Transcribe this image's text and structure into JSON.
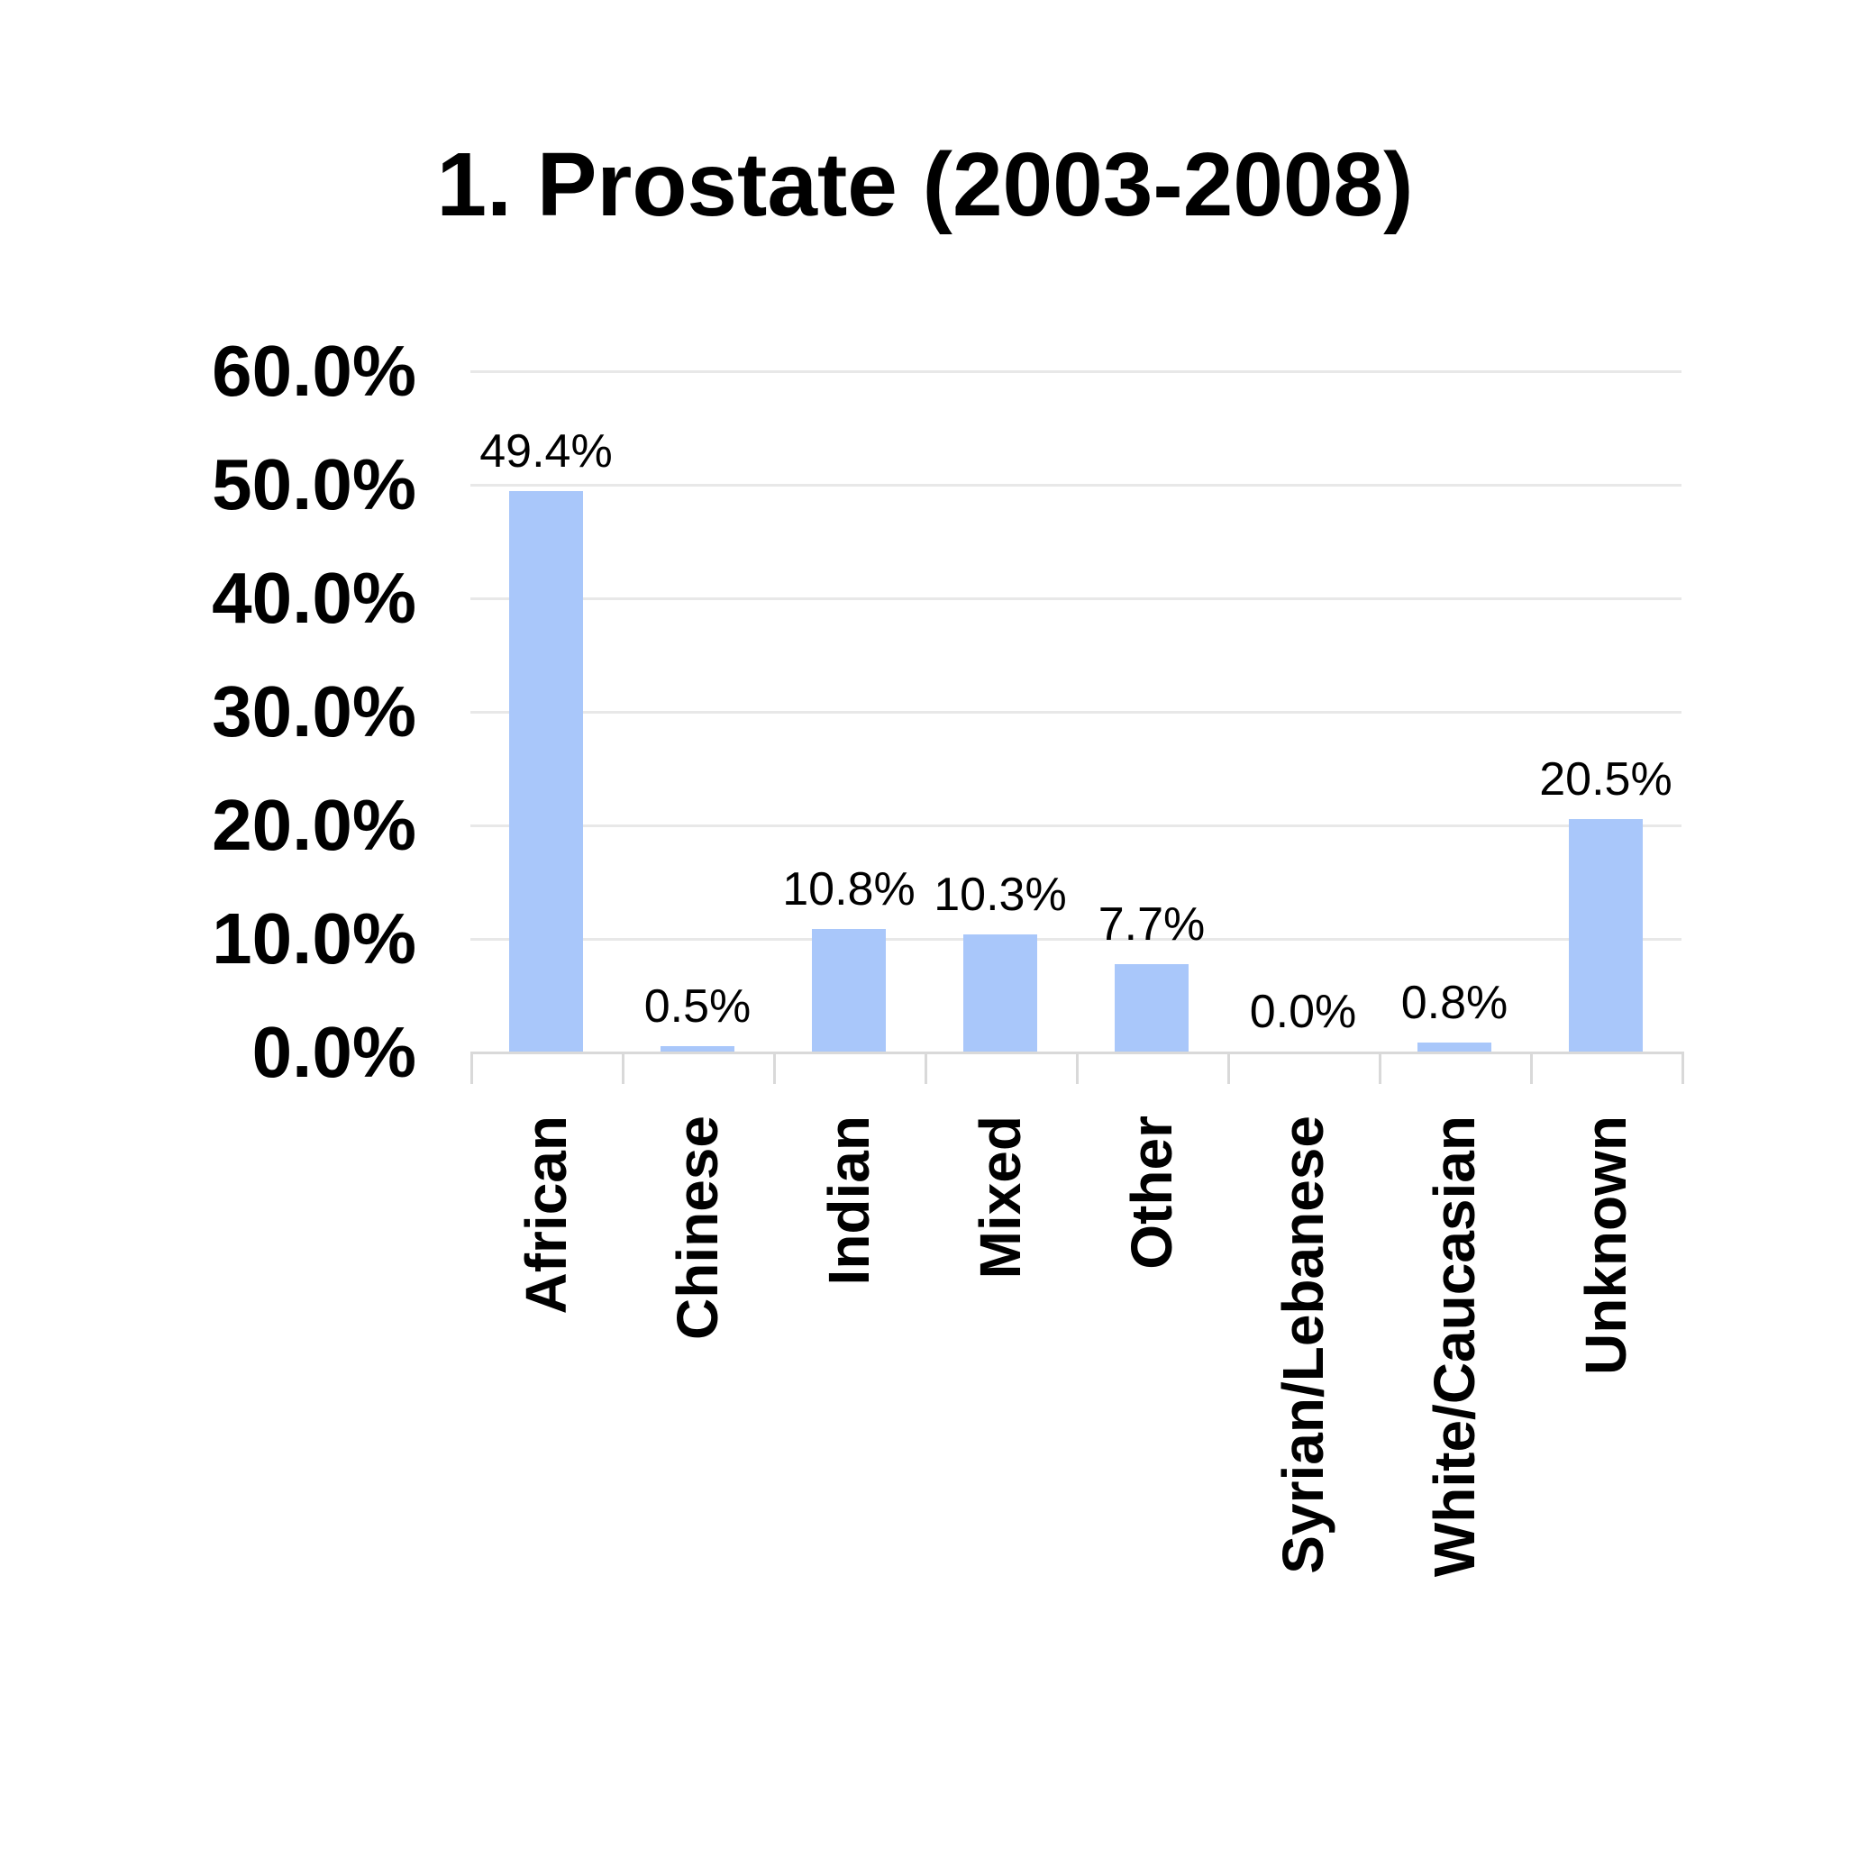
{
  "chart_data": {
    "type": "bar",
    "title": "1. Prostate (2003-2008)",
    "categories": [
      "African",
      "Chinese",
      "Indian",
      "Mixed",
      "Other",
      "Syrian/Lebanese",
      "White/Caucasian",
      "Unknown"
    ],
    "values": [
      49.4,
      0.5,
      10.8,
      10.3,
      7.7,
      0.0,
      0.8,
      20.5
    ],
    "value_labels": [
      "49.4%",
      "0.5%",
      "10.8%",
      "10.3%",
      "7.7%",
      "0.0%",
      "0.8%",
      "20.5%"
    ],
    "y_tick_labels": [
      "60.0%",
      "50.0%",
      "40.0%",
      "30.0%",
      "20.0%",
      "10.0%",
      "0.0%"
    ],
    "y_tick_values": [
      60,
      50,
      40,
      30,
      20,
      10,
      0
    ],
    "ylim": [
      0,
      60
    ],
    "xlabel": "",
    "ylabel": "",
    "grid": true,
    "legend_position": "none",
    "bar_color": "#a9c7fa",
    "gridline_color": "#e8e8e8",
    "axis_color": "#d9d9d9",
    "text_color": "#000000"
  }
}
